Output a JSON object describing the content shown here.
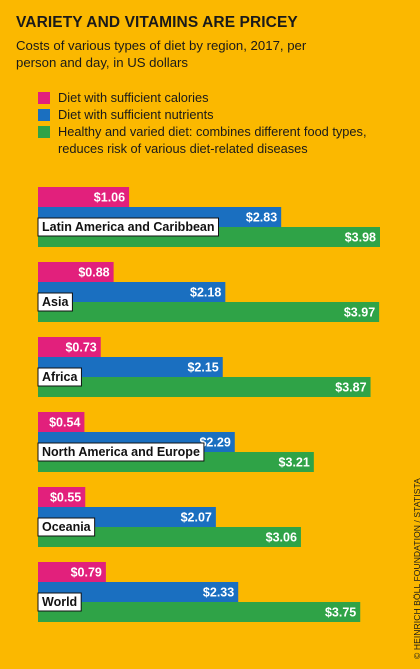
{
  "title": "VARIETY AND VITAMINS ARE PRICEY",
  "subtitle": "Costs of various types of diet by region, 2017, per person and day, in US dollars",
  "credit": "© HEINRICH BÖLL FOUNDATION / STATISTA",
  "colors": {
    "background": "#fbb800",
    "calories": "#e2207c",
    "nutrients": "#1a6fc0",
    "healthy": "#2fa347"
  },
  "chart_data": {
    "type": "bar",
    "orientation": "horizontal",
    "currency_prefix": "$",
    "categories": [
      "Latin America and Caribbean",
      "Asia",
      "Africa",
      "North America and Europe",
      "Oceania",
      "World"
    ],
    "series": [
      {
        "name": "Diet with sufficient calories",
        "color": "#e2207c",
        "values": [
          1.06,
          0.88,
          0.73,
          0.54,
          0.55,
          0.79
        ]
      },
      {
        "name": "Diet with sufficient nutrients",
        "color": "#1a6fc0",
        "values": [
          2.83,
          2.18,
          2.15,
          2.29,
          2.07,
          2.33
        ]
      },
      {
        "name": "Healthy and varied diet: combines different food types, reduces risk of various diet-related diseases",
        "color": "#2fa347",
        "values": [
          3.98,
          3.97,
          3.87,
          3.21,
          3.06,
          3.75
        ]
      }
    ],
    "xlim": [
      0,
      3.98
    ],
    "grid": false,
    "legend_position": "top-left"
  }
}
